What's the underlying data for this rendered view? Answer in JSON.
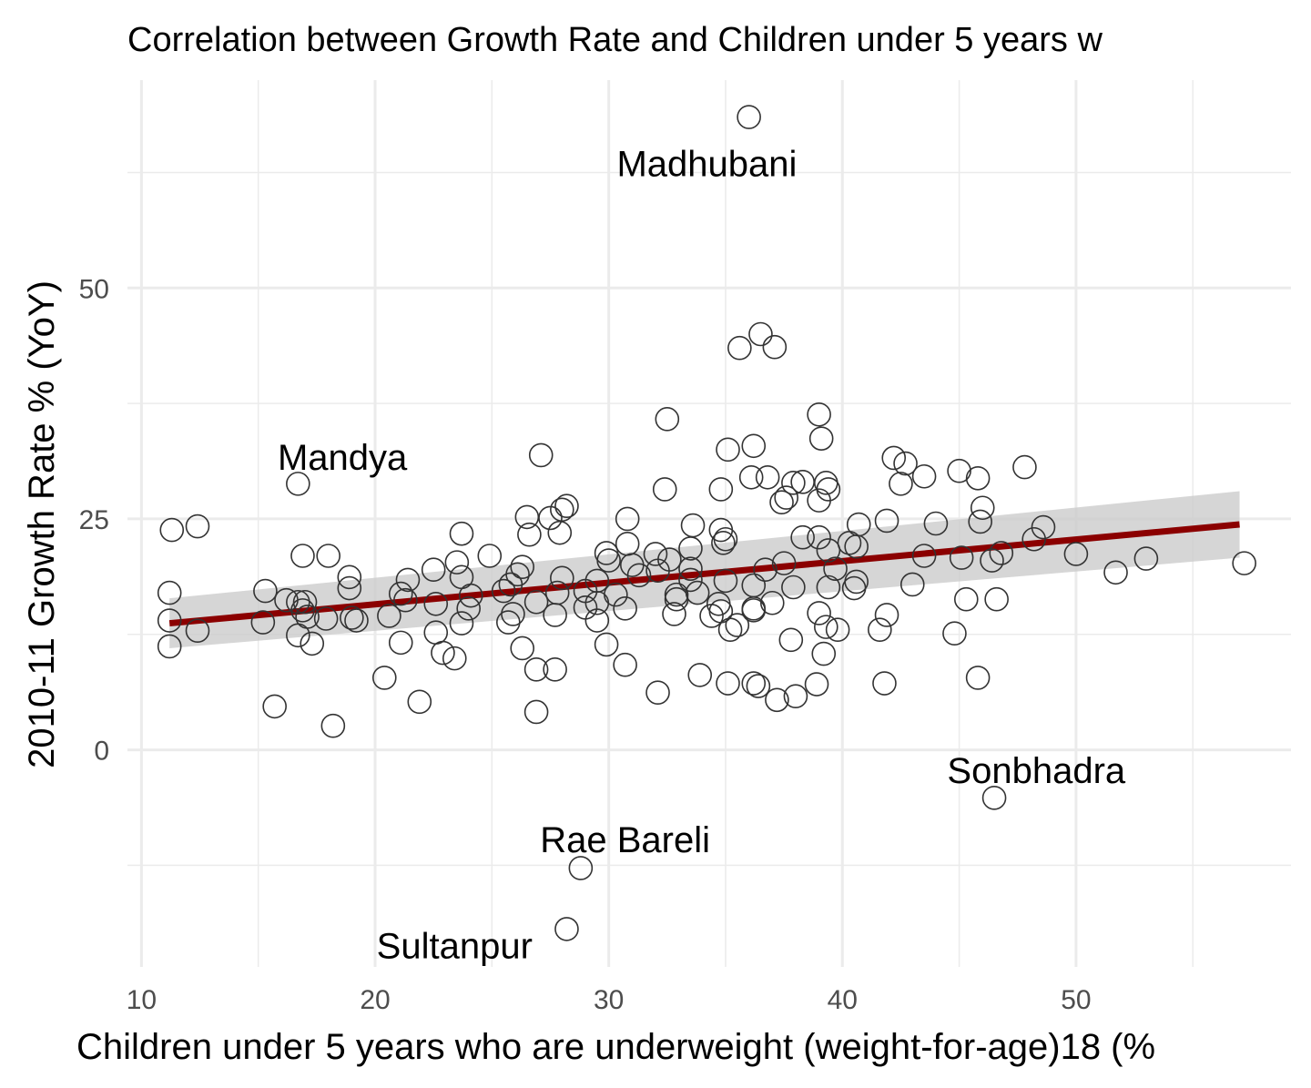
{
  "chart_data": {
    "type": "scatter",
    "title": "Correlation between Growth Rate and Children under 5 years w",
    "xlabel": "Children under 5 years who are underweight (weight-for-age)18 (%",
    "ylabel": "2010-11 Growth Rate % (YoY)",
    "xlim": [
      9.4,
      59.2
    ],
    "ylim": [
      -23.5,
      72.5
    ],
    "x_ticks": [
      10,
      20,
      30,
      40,
      50
    ],
    "x_tick_labels": [
      "10",
      "20",
      "30",
      "40",
      "50"
    ],
    "y_ticks": [
      0,
      25,
      50
    ],
    "y_tick_labels": [
      "0",
      "25",
      "50"
    ],
    "grid": true,
    "point_style": "hollow-circle",
    "colors": {
      "points": "#333333",
      "trend": "#8b0000",
      "band": "#cccccc"
    },
    "trend_line": {
      "x": [
        11.2,
        57.0
      ],
      "y": [
        13.7,
        24.4
      ]
    },
    "confidence_band": {
      "x": [
        11.2,
        57.0
      ],
      "upper": [
        16.4,
        28.0
      ],
      "lower": [
        11.0,
        20.8
      ]
    },
    "annotations": [
      {
        "text": "Madhubani",
        "x": 34.2,
        "y": 63.5
      },
      {
        "text": "Mandya",
        "x": 18.6,
        "y": 31.7
      },
      {
        "text": "Sonbhadra",
        "x": 48.3,
        "y": -2.2
      },
      {
        "text": "Rae Bareli",
        "x": 30.7,
        "y": -9.7
      },
      {
        "text": "Sultanpur",
        "x": 23.4,
        "y": -21.2
      }
    ],
    "points": [
      [
        36.0,
        68.5
      ],
      [
        46.5,
        -5.2
      ],
      [
        28.8,
        -12.8
      ],
      [
        28.2,
        -19.4
      ],
      [
        35.6,
        43.5
      ],
      [
        36.5,
        45.0
      ],
      [
        37.1,
        43.6
      ],
      [
        39.0,
        36.3
      ],
      [
        32.5,
        35.8
      ],
      [
        39.1,
        33.7
      ],
      [
        27.1,
        31.9
      ],
      [
        35.1,
        32.5
      ],
      [
        36.2,
        32.9
      ],
      [
        42.2,
        31.6
      ],
      [
        42.7,
        31.0
      ],
      [
        47.8,
        30.6
      ],
      [
        45.0,
        30.2
      ],
      [
        43.5,
        29.6
      ],
      [
        45.8,
        29.4
      ],
      [
        36.1,
        29.5
      ],
      [
        36.8,
        29.5
      ],
      [
        37.9,
        28.9
      ],
      [
        38.3,
        29.0
      ],
      [
        39.3,
        28.9
      ],
      [
        16.7,
        28.8
      ],
      [
        32.4,
        28.2
      ],
      [
        34.8,
        28.2
      ],
      [
        42.5,
        28.8
      ],
      [
        37.6,
        27.3
      ],
      [
        37.4,
        26.8
      ],
      [
        39.0,
        27.0
      ],
      [
        39.4,
        28.2
      ],
      [
        46.0,
        26.2
      ],
      [
        26.5,
        25.2
      ],
      [
        27.5,
        25.1
      ],
      [
        28.0,
        26.0
      ],
      [
        28.2,
        26.4
      ],
      [
        30.8,
        25.0
      ],
      [
        41.9,
        24.8
      ],
      [
        45.9,
        24.7
      ],
      [
        11.3,
        23.8
      ],
      [
        12.4,
        24.2
      ],
      [
        26.6,
        23.3
      ],
      [
        27.9,
        23.5
      ],
      [
        33.6,
        24.3
      ],
      [
        34.8,
        23.8
      ],
      [
        23.7,
        23.4
      ],
      [
        40.7,
        24.4
      ],
      [
        44.0,
        24.5
      ],
      [
        35.0,
        22.8
      ],
      [
        38.3,
        23.0
      ],
      [
        39.0,
        23.0
      ],
      [
        40.3,
        22.4
      ],
      [
        48.2,
        22.8
      ],
      [
        48.6,
        24.1
      ],
      [
        30.8,
        22.3
      ],
      [
        33.5,
        21.8
      ],
      [
        34.9,
        22.4
      ],
      [
        40.6,
        22.0
      ],
      [
        39.4,
        21.6
      ],
      [
        16.9,
        21.0
      ],
      [
        18.0,
        21.0
      ],
      [
        24.9,
        21.0
      ],
      [
        29.9,
        21.3
      ],
      [
        32.0,
        21.2
      ],
      [
        32.6,
        20.6
      ],
      [
        46.8,
        21.3
      ],
      [
        50.0,
        21.2
      ],
      [
        45.1,
        20.8
      ],
      [
        46.4,
        20.5
      ],
      [
        43.5,
        21.0
      ],
      [
        53.0,
        20.7
      ],
      [
        57.2,
        20.2
      ],
      [
        23.5,
        20.3
      ],
      [
        22.5,
        19.5
      ],
      [
        26.3,
        19.8
      ],
      [
        30.0,
        20.5
      ],
      [
        31.0,
        20.0
      ],
      [
        32.1,
        19.4
      ],
      [
        33.5,
        19.6
      ],
      [
        36.7,
        19.5
      ],
      [
        37.5,
        20.2
      ],
      [
        39.7,
        19.6
      ],
      [
        51.7,
        19.2
      ],
      [
        23.7,
        18.7
      ],
      [
        18.9,
        18.7
      ],
      [
        26.1,
        19.0
      ],
      [
        28.0,
        18.6
      ],
      [
        29.5,
        18.3
      ],
      [
        31.3,
        18.9
      ],
      [
        33.5,
        18.4
      ],
      [
        35.0,
        18.3
      ],
      [
        36.2,
        17.8
      ],
      [
        37.9,
        17.6
      ],
      [
        39.4,
        17.6
      ],
      [
        40.6,
        18.2
      ],
      [
        43.0,
        17.9
      ],
      [
        21.4,
        18.4
      ],
      [
        15.3,
        17.2
      ],
      [
        25.8,
        17.9
      ],
      [
        18.9,
        17.5
      ],
      [
        11.2,
        17.0
      ],
      [
        21.1,
        16.9
      ],
      [
        25.5,
        17.2
      ],
      [
        27.8,
        17.0
      ],
      [
        29.0,
        17.2
      ],
      [
        30.3,
        16.8
      ],
      [
        33.8,
        17.0
      ],
      [
        32.9,
        16.8
      ],
      [
        40.5,
        17.5
      ],
      [
        16.2,
        16.2
      ],
      [
        16.7,
        16.0
      ],
      [
        17.0,
        16.0
      ],
      [
        21.3,
        16.2
      ],
      [
        22.6,
        15.8
      ],
      [
        24.1,
        16.7
      ],
      [
        26.9,
        16.0
      ],
      [
        29.5,
        15.9
      ],
      [
        32.9,
        16.3
      ],
      [
        34.7,
        15.8
      ],
      [
        36.2,
        15.3
      ],
      [
        37.0,
        15.9
      ],
      [
        45.3,
        16.3
      ],
      [
        46.6,
        16.3
      ],
      [
        16.9,
        15.1
      ],
      [
        17.1,
        14.4
      ],
      [
        19.0,
        14.3
      ],
      [
        20.6,
        14.5
      ],
      [
        24.0,
        15.3
      ],
      [
        25.9,
        14.7
      ],
      [
        27.7,
        14.6
      ],
      [
        29.0,
        15.4
      ],
      [
        30.7,
        15.3
      ],
      [
        32.8,
        14.7
      ],
      [
        34.8,
        15.0
      ],
      [
        36.2,
        15.1
      ],
      [
        39.0,
        14.8
      ],
      [
        41.9,
        14.6
      ],
      [
        11.2,
        14.0
      ],
      [
        15.2,
        13.8
      ],
      [
        17.9,
        14.2
      ],
      [
        19.2,
        14.0
      ],
      [
        23.7,
        13.7
      ],
      [
        25.7,
        13.8
      ],
      [
        29.5,
        14.0
      ],
      [
        34.4,
        14.5
      ],
      [
        35.5,
        13.5
      ],
      [
        39.3,
        13.3
      ],
      [
        12.4,
        12.9
      ],
      [
        16.7,
        12.4
      ],
      [
        22.6,
        12.7
      ],
      [
        35.2,
        13.0
      ],
      [
        39.8,
        13.0
      ],
      [
        41.6,
        13.0
      ],
      [
        44.8,
        12.6
      ],
      [
        11.2,
        11.2
      ],
      [
        17.3,
        11.5
      ],
      [
        21.1,
        11.6
      ],
      [
        29.9,
        11.4
      ],
      [
        37.8,
        11.9
      ],
      [
        26.3,
        11.0
      ],
      [
        22.9,
        10.5
      ],
      [
        23.4,
        9.9
      ],
      [
        30.7,
        9.2
      ],
      [
        39.2,
        10.4
      ],
      [
        26.9,
        8.7
      ],
      [
        27.7,
        8.7
      ],
      [
        33.9,
        8.1
      ],
      [
        20.4,
        7.8
      ],
      [
        45.8,
        7.8
      ],
      [
        35.1,
        7.2
      ],
      [
        36.2,
        7.2
      ],
      [
        36.4,
        6.9
      ],
      [
        38.9,
        7.1
      ],
      [
        41.8,
        7.2
      ],
      [
        32.1,
        6.2
      ],
      [
        37.2,
        5.4
      ],
      [
        38.0,
        5.8
      ],
      [
        21.9,
        5.2
      ],
      [
        15.7,
        4.7
      ],
      [
        26.9,
        4.1
      ],
      [
        18.2,
        2.6
      ]
    ]
  }
}
